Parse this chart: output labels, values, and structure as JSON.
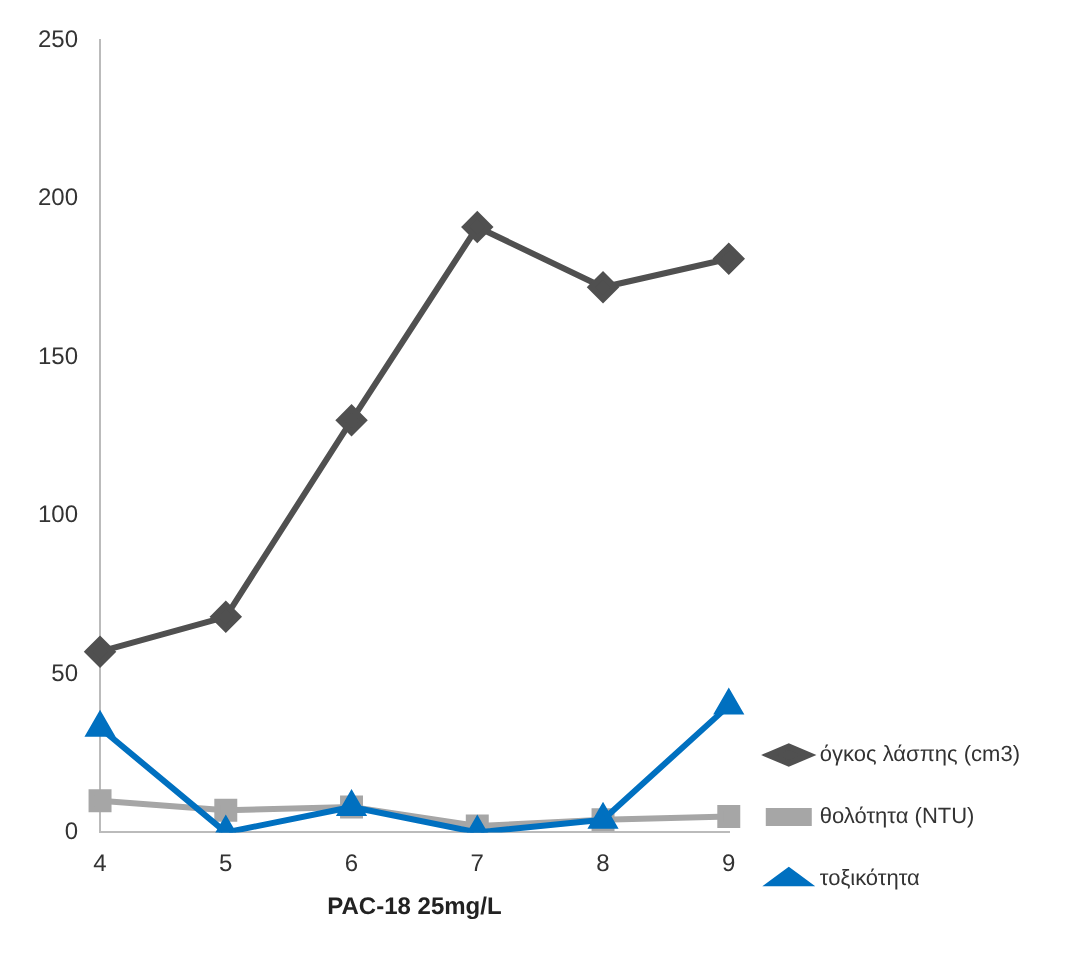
{
  "chart_data": {
    "type": "line",
    "xlabel": "PAC-18 25mg/L",
    "categories": [
      "4",
      "5",
      "6",
      "7",
      "8",
      "9"
    ],
    "series": [
      {
        "name": "όγκος λάσπης (cm3)",
        "color": "#505050",
        "marker": "diamond",
        "values": [
          57,
          68,
          130,
          191,
          172,
          181
        ]
      },
      {
        "name": "θολότητα (NTU)",
        "color": "#a6a6a6",
        "marker": "square",
        "values": [
          10,
          7,
          8,
          2,
          4,
          5
        ]
      },
      {
        "name": "τοξικότητα",
        "color": "#0070c0",
        "marker": "triangle",
        "values": [
          33,
          0,
          8,
          0,
          4,
          40
        ]
      }
    ],
    "ylim": [
      0,
      250
    ],
    "yticks": [
      0,
      50,
      100,
      150,
      200,
      250
    ],
    "grid": false,
    "legend": "right",
    "line_style": "solid"
  }
}
